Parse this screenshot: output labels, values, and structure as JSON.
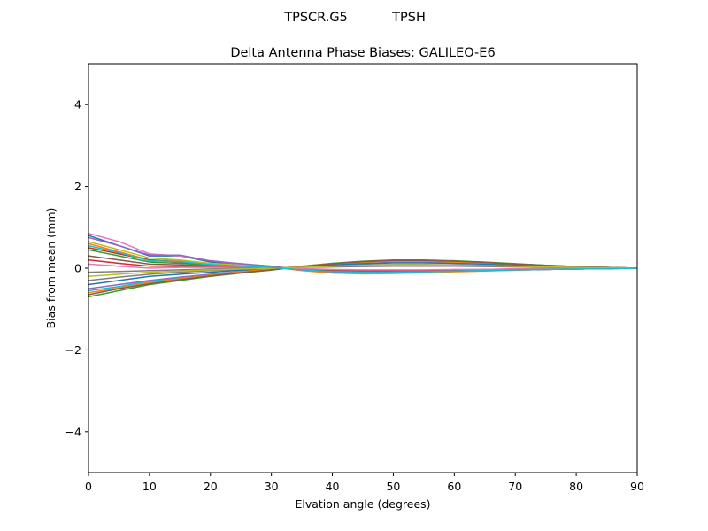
{
  "chart_data": {
    "type": "line",
    "suptitle_left": "TPSCR.G5",
    "suptitle_right": "TPSH",
    "title": "Delta Antenna Phase Biases: GALILEO-E6",
    "xlabel": "Elvation angle (degrees)",
    "ylabel": "Bias from mean (mm)",
    "xlim": [
      0,
      90
    ],
    "ylim": [
      -5,
      5
    ],
    "xticks": [
      0,
      10,
      20,
      30,
      40,
      50,
      60,
      70,
      80,
      90
    ],
    "yticks": [
      -4,
      -2,
      0,
      2,
      4
    ],
    "ytick_labels": [
      "−4",
      "−2",
      "0",
      "2",
      "4"
    ],
    "grid": false,
    "legend": "none",
    "x": [
      0,
      5,
      10,
      15,
      20,
      25,
      30,
      35,
      40,
      45,
      50,
      55,
      60,
      65,
      70,
      75,
      80,
      85,
      90
    ],
    "series": [
      {
        "color": "#1f77b4",
        "values": [
          0.8,
          0.55,
          0.3,
          0.3,
          0.15,
          0.1,
          0.05,
          -0.05,
          -0.1,
          -0.12,
          -0.12,
          -0.1,
          -0.08,
          -0.06,
          -0.05,
          -0.03,
          -0.02,
          -0.01,
          0.0
        ]
      },
      {
        "color": "#ff7f0e",
        "values": [
          0.6,
          0.4,
          0.2,
          0.18,
          0.1,
          0.06,
          0.03,
          -0.06,
          -0.12,
          -0.14,
          -0.13,
          -0.11,
          -0.09,
          -0.07,
          -0.05,
          -0.03,
          -0.02,
          -0.01,
          0.0
        ]
      },
      {
        "color": "#2ca02c",
        "values": [
          -0.7,
          -0.55,
          -0.4,
          -0.3,
          -0.2,
          -0.12,
          -0.05,
          0.05,
          0.12,
          0.17,
          0.2,
          0.2,
          0.18,
          0.15,
          0.11,
          0.07,
          0.04,
          0.02,
          0.0
        ]
      },
      {
        "color": "#d62728",
        "values": [
          0.5,
          0.35,
          0.2,
          0.15,
          0.08,
          0.05,
          0.02,
          -0.04,
          -0.08,
          -0.1,
          -0.1,
          -0.09,
          -0.07,
          -0.06,
          -0.04,
          -0.03,
          -0.02,
          -0.01,
          0.0
        ]
      },
      {
        "color": "#9467bd",
        "values": [
          -0.5,
          -0.4,
          -0.3,
          -0.22,
          -0.15,
          -0.08,
          -0.02,
          0.04,
          0.1,
          0.14,
          0.16,
          0.16,
          0.14,
          0.12,
          0.09,
          0.06,
          0.04,
          0.02,
          0.0
        ]
      },
      {
        "color": "#8c564b",
        "values": [
          0.3,
          0.2,
          0.1,
          0.08,
          0.05,
          0.04,
          0.02,
          -0.02,
          -0.06,
          -0.08,
          -0.08,
          -0.07,
          -0.06,
          -0.05,
          -0.03,
          -0.02,
          -0.01,
          -0.01,
          0.0
        ]
      },
      {
        "color": "#e377c2",
        "values": [
          0.85,
          0.65,
          0.35,
          0.3,
          0.18,
          0.1,
          0.05,
          -0.03,
          -0.08,
          -0.1,
          -0.09,
          -0.08,
          -0.06,
          -0.05,
          -0.04,
          -0.03,
          -0.02,
          -0.01,
          0.0
        ]
      },
      {
        "color": "#7f7f7f",
        "values": [
          -0.3,
          -0.22,
          -0.15,
          -0.1,
          -0.06,
          -0.03,
          0.0,
          0.03,
          0.06,
          0.08,
          0.09,
          0.09,
          0.08,
          0.07,
          0.05,
          0.04,
          0.02,
          0.01,
          0.0
        ]
      },
      {
        "color": "#bcbd22",
        "values": [
          0.65,
          0.45,
          0.25,
          0.2,
          0.12,
          0.07,
          0.03,
          -0.04,
          -0.09,
          -0.11,
          -0.11,
          -0.1,
          -0.08,
          -0.06,
          -0.05,
          -0.03,
          -0.02,
          -0.01,
          0.0
        ]
      },
      {
        "color": "#17becf",
        "values": [
          -0.55,
          -0.45,
          -0.32,
          -0.25,
          -0.18,
          -0.1,
          -0.03,
          0.05,
          0.11,
          0.15,
          0.18,
          0.18,
          0.16,
          0.13,
          0.1,
          0.07,
          0.04,
          0.02,
          0.0
        ]
      },
      {
        "color": "#1f77b4",
        "values": [
          -0.4,
          -0.3,
          -0.2,
          -0.15,
          -0.1,
          -0.05,
          -0.01,
          0.04,
          0.08,
          0.11,
          0.13,
          0.13,
          0.12,
          0.1,
          0.08,
          0.05,
          0.03,
          0.01,
          0.0
        ]
      },
      {
        "color": "#ff7f0e",
        "values": [
          -0.6,
          -0.48,
          -0.35,
          -0.26,
          -0.17,
          -0.09,
          -0.02,
          0.05,
          0.11,
          0.15,
          0.17,
          0.17,
          0.15,
          0.13,
          0.1,
          0.06,
          0.04,
          0.02,
          0.0
        ]
      },
      {
        "color": "#2ca02c",
        "values": [
          0.45,
          0.3,
          0.15,
          0.12,
          0.07,
          0.04,
          0.02,
          -0.03,
          -0.07,
          -0.09,
          -0.09,
          -0.08,
          -0.07,
          -0.05,
          -0.04,
          -0.03,
          -0.02,
          -0.01,
          0.0
        ]
      },
      {
        "color": "#d62728",
        "values": [
          0.2,
          0.12,
          0.05,
          0.05,
          0.03,
          0.02,
          0.01,
          -0.02,
          -0.04,
          -0.05,
          -0.05,
          -0.05,
          -0.04,
          -0.03,
          -0.02,
          -0.02,
          -0.01,
          0.0,
          0.0
        ]
      },
      {
        "color": "#9467bd",
        "values": [
          0.75,
          0.55,
          0.32,
          0.32,
          0.18,
          0.11,
          0.05,
          -0.04,
          -0.09,
          -0.11,
          -0.1,
          -0.09,
          -0.07,
          -0.05,
          -0.04,
          -0.03,
          -0.02,
          -0.01,
          0.0
        ]
      },
      {
        "color": "#8c564b",
        "values": [
          -0.65,
          -0.5,
          -0.38,
          -0.28,
          -0.19,
          -0.11,
          -0.04,
          0.04,
          0.11,
          0.16,
          0.19,
          0.19,
          0.17,
          0.14,
          0.1,
          0.07,
          0.04,
          0.02,
          0.0
        ]
      },
      {
        "color": "#e377c2",
        "values": [
          0.1,
          0.05,
          0.0,
          0.02,
          0.02,
          0.02,
          0.01,
          -0.01,
          -0.03,
          -0.04,
          -0.04,
          -0.04,
          -0.03,
          -0.03,
          -0.02,
          -0.01,
          -0.01,
          0.0,
          0.0
        ]
      },
      {
        "color": "#7f7f7f",
        "values": [
          -0.1,
          -0.08,
          -0.06,
          -0.04,
          -0.02,
          0.0,
          0.01,
          0.02,
          0.03,
          0.04,
          0.05,
          0.05,
          0.05,
          0.04,
          0.03,
          0.02,
          0.01,
          0.01,
          0.0
        ]
      },
      {
        "color": "#bcbd22",
        "values": [
          -0.2,
          -0.15,
          -0.1,
          -0.07,
          -0.04,
          -0.02,
          0.0,
          0.02,
          0.05,
          0.07,
          0.08,
          0.08,
          0.07,
          0.06,
          0.05,
          0.03,
          0.02,
          0.01,
          0.0
        ]
      },
      {
        "color": "#17becf",
        "values": [
          0.55,
          0.38,
          0.18,
          0.16,
          0.09,
          0.05,
          0.02,
          -0.04,
          -0.08,
          -0.1,
          -0.1,
          -0.09,
          -0.07,
          -0.06,
          -0.04,
          -0.03,
          -0.02,
          -0.01,
          0.0
        ]
      }
    ]
  }
}
